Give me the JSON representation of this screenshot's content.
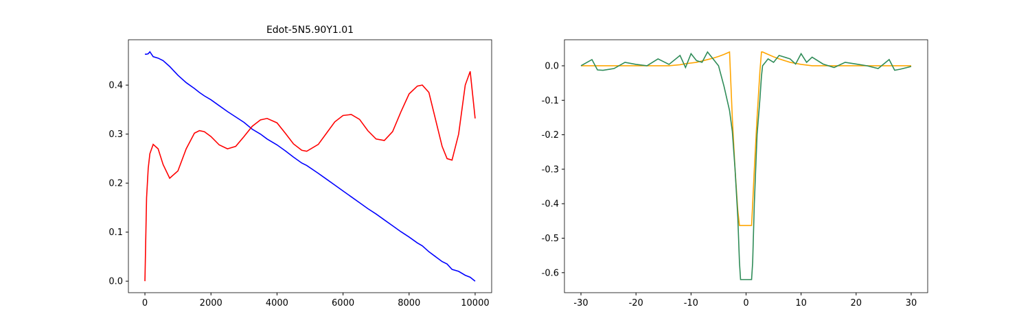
{
  "chart_data": [
    {
      "type": "line",
      "title": "Edot-5N5.90Y1.01",
      "x": [
        0,
        50,
        100,
        150,
        250,
        400,
        550,
        750,
        1000,
        1250,
        1500,
        1650,
        1800,
        2000,
        2250,
        2500,
        2750,
        3000,
        3250,
        3500,
        3700,
        4000,
        4250,
        4500,
        4750,
        4900,
        5250,
        5500,
        5750,
        6000,
        6250,
        6500,
        6750,
        7000,
        7250,
        7500,
        7750,
        8000,
        8250,
        8400,
        8600,
        8800,
        9000,
        9150,
        9300,
        9500,
        9700,
        9850,
        10000
      ],
      "series": [
        {
          "color": "#0000ff",
          "values": [
            0.463,
            0.463,
            0.464,
            0.468,
            0.458,
            0.455,
            0.45,
            0.438,
            0.42,
            0.405,
            0.393,
            0.385,
            0.378,
            0.37,
            0.358,
            0.346,
            0.335,
            0.324,
            0.31,
            0.3,
            0.29,
            0.278,
            0.266,
            0.253,
            0.241,
            0.236,
            0.22,
            0.208,
            0.196,
            0.184,
            0.172,
            0.16,
            0.148,
            0.137,
            0.125,
            0.113,
            0.101,
            0.09,
            0.078,
            0.072,
            0.06,
            0.05,
            0.04,
            0.035,
            0.024,
            0.02,
            0.012,
            0.008,
            0.0
          ]
        },
        {
          "color": "#ff0000",
          "values": [
            0,
            0.17,
            0.23,
            0.26,
            0.279,
            0.27,
            0.238,
            0.21,
            0.225,
            0.27,
            0.302,
            0.307,
            0.305,
            0.295,
            0.278,
            0.27,
            0.275,
            0.295,
            0.316,
            0.329,
            0.332,
            0.323,
            0.302,
            0.28,
            0.267,
            0.265,
            0.279,
            0.302,
            0.325,
            0.338,
            0.34,
            0.33,
            0.307,
            0.29,
            0.287,
            0.305,
            0.345,
            0.382,
            0.398,
            0.4,
            0.385,
            0.33,
            0.275,
            0.25,
            0.247,
            0.3,
            0.4,
            0.428,
            0.332
          ]
        }
      ],
      "xlim": [
        -500,
        10500
      ],
      "ylim": [
        -0.0235,
        0.4925
      ],
      "xticks": [
        0,
        2000,
        4000,
        6000,
        8000,
        10000
      ],
      "yticks": [
        {
          "value": 0,
          "label": "0.0"
        },
        0.1,
        0.2,
        0.3,
        0.4
      ]
    },
    {
      "type": "line",
      "x": [
        -30,
        -28,
        -27,
        -26,
        -24,
        -22,
        -20,
        -18,
        -16,
        -14,
        -12,
        -11,
        -10,
        -9,
        -8,
        -7,
        -6,
        -5,
        -4,
        -3,
        -2.5,
        -2,
        -1.5,
        -1.2,
        -1,
        0,
        1,
        1.2,
        1.5,
        2,
        2.5,
        2.8,
        3,
        4,
        5,
        6,
        7,
        8,
        9,
        10,
        11,
        12,
        14,
        16,
        18,
        20,
        22,
        24,
        26,
        27,
        28,
        30
      ],
      "series": [
        {
          "color": "#ffa500",
          "values": [
            0,
            0,
            0,
            0,
            0,
            0,
            0,
            0,
            0,
            0,
            0.003,
            0.006,
            0.008,
            0.01,
            0.014,
            0.018,
            0.022,
            0.027,
            0.033,
            0.04,
            -0.15,
            -0.3,
            -0.42,
            -0.463,
            -0.463,
            -0.463,
            -0.463,
            -0.4,
            -0.3,
            -0.15,
            -0.02,
            0.04,
            0.04,
            0.033,
            0.026,
            0.02,
            0.015,
            0.01,
            0.007,
            0.004,
            0.002,
            0,
            0,
            0,
            0,
            0,
            0,
            0,
            0,
            0,
            0,
            0
          ]
        },
        {
          "color": "#2e8b57",
          "values": [
            0,
            0.018,
            -0.012,
            -0.013,
            -0.008,
            0.01,
            0.004,
            0.0,
            0.02,
            0.004,
            0.03,
            -0.005,
            0.035,
            0.015,
            0.01,
            0.04,
            0.02,
            0.0,
            -0.06,
            -0.13,
            -0.19,
            -0.3,
            -0.44,
            -0.57,
            -0.62,
            -0.62,
            -0.62,
            -0.57,
            -0.4,
            -0.2,
            -0.1,
            -0.03,
            0.0,
            0.02,
            0.01,
            0.03,
            0.025,
            0.02,
            0.005,
            0.035,
            0.01,
            0.025,
            0.005,
            -0.005,
            0.01,
            0.005,
            0.0,
            -0.008,
            0.018,
            -0.013,
            -0.01,
            -0.002
          ]
        }
      ],
      "xlim": [
        -33,
        33
      ],
      "ylim": [
        -0.658,
        0.0755
      ],
      "xticks": [
        -30,
        -20,
        -10,
        0,
        10,
        20,
        30
      ],
      "yticks": [
        {
          "value": 0,
          "label": "0.0"
        },
        -0.1,
        -0.2,
        -0.3,
        -0.4,
        -0.5,
        -0.6
      ]
    }
  ]
}
